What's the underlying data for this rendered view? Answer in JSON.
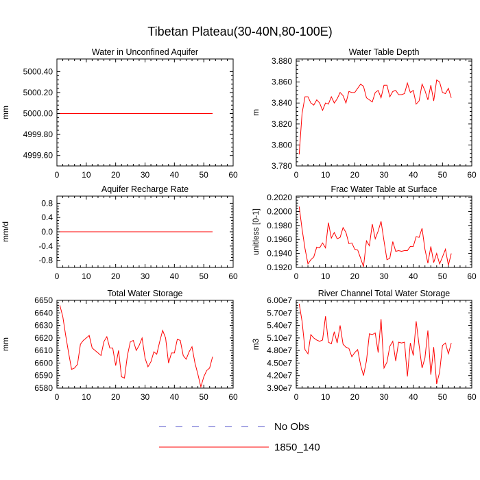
{
  "figure": {
    "title": "Tibetan Plateau(30-40N,80-100E)"
  },
  "legend": {
    "entries": [
      {
        "label": "No Obs",
        "color": "#5050c8",
        "dash": true
      },
      {
        "label": "1850_140",
        "color": "#ff0000",
        "dash": false
      }
    ]
  },
  "chart_data": [
    {
      "type": "line",
      "title": "Water in Unconfined Aquifer",
      "xlabel": "",
      "ylabel": "mm",
      "xlim": [
        0,
        60
      ],
      "ylim": [
        4999.5,
        5000.52
      ],
      "xticks": [
        0,
        10,
        20,
        30,
        40,
        50,
        60
      ],
      "yticks": [
        4999.6,
        4999.8,
        5000.0,
        5000.2,
        5000.4
      ],
      "ytick_labels": [
        "4999.60",
        "4999.80",
        "5000.00",
        "5000.20",
        "5000.40"
      ],
      "series": [
        {
          "name": "1850_140",
          "color": "#ff0000",
          "x": [
            1,
            53
          ],
          "y": [
            5000.0,
            5000.0
          ]
        }
      ]
    },
    {
      "type": "line",
      "title": "Water Table Depth",
      "xlabel": "",
      "ylabel": "m",
      "xlim": [
        0,
        60
      ],
      "ylim": [
        3.78,
        3.882
      ],
      "xticks": [
        0,
        10,
        20,
        30,
        40,
        50,
        60
      ],
      "yticks": [
        3.78,
        3.8,
        3.82,
        3.84,
        3.86,
        3.88
      ],
      "ytick_labels": [
        "3.780",
        "3.800",
        "3.820",
        "3.840",
        "3.860",
        "3.880"
      ],
      "series": [
        {
          "name": "1850_140",
          "color": "#ff0000",
          "x": [
            1,
            2,
            3,
            4,
            5,
            6,
            7,
            8,
            9,
            10,
            11,
            12,
            13,
            14,
            15,
            16,
            17,
            18,
            19,
            20,
            21,
            22,
            23,
            24,
            25,
            26,
            27,
            28,
            29,
            30,
            31,
            32,
            33,
            34,
            35,
            36,
            37,
            38,
            39,
            40,
            41,
            42,
            43,
            44,
            45,
            46,
            47,
            48,
            49,
            50,
            51,
            52,
            53
          ],
          "y": [
            3.791,
            3.83,
            3.846,
            3.846,
            3.84,
            3.838,
            3.843,
            3.84,
            3.833,
            3.84,
            3.839,
            3.846,
            3.84,
            3.844,
            3.85,
            3.847,
            3.84,
            3.851,
            3.85,
            3.85,
            3.854,
            3.858,
            3.856,
            3.845,
            3.843,
            3.841,
            3.85,
            3.852,
            3.845,
            3.857,
            3.857,
            3.846,
            3.851,
            3.852,
            3.848,
            3.848,
            3.849,
            3.859,
            3.85,
            3.852,
            3.839,
            3.842,
            3.858,
            3.852,
            3.843,
            3.857,
            3.842,
            3.862,
            3.86,
            3.85,
            3.849,
            3.854,
            3.845
          ]
        }
      ]
    },
    {
      "type": "line",
      "title": "Aquifer Recharge Rate",
      "xlabel": "",
      "ylabel": "mm/d",
      "xlim": [
        0,
        60
      ],
      "ylim": [
        -1.0,
        1.0
      ],
      "xticks": [
        0,
        10,
        20,
        30,
        40,
        50,
        60
      ],
      "yticks": [
        -0.8,
        -0.4,
        0.0,
        0.4,
        0.8
      ],
      "ytick_labels": [
        "-0.8",
        "-0.4",
        "0.0",
        "0.4",
        "0.8"
      ],
      "series": [
        {
          "name": "1850_140",
          "color": "#ff0000",
          "x": [
            1,
            53
          ],
          "y": [
            0.0,
            0.0
          ]
        }
      ]
    },
    {
      "type": "line",
      "title": "Frac Water Table at Surface",
      "xlabel": "",
      "ylabel": "unitless [0-1]",
      "xlim": [
        0,
        60
      ],
      "ylim": [
        0.192,
        0.2022
      ],
      "xticks": [
        0,
        10,
        20,
        30,
        40,
        50,
        60
      ],
      "yticks": [
        0.192,
        0.194,
        0.196,
        0.198,
        0.2,
        0.202
      ],
      "ytick_labels": [
        "0.1920",
        "0.1940",
        "0.1960",
        "0.1980",
        "0.2000",
        "0.2020"
      ],
      "series": [
        {
          "name": "1850_140",
          "color": "#ff0000",
          "x": [
            1,
            2,
            3,
            4,
            5,
            6,
            7,
            8,
            9,
            10,
            11,
            12,
            13,
            14,
            15,
            16,
            17,
            18,
            19,
            20,
            21,
            22,
            23,
            24,
            25,
            26,
            27,
            28,
            29,
            30,
            31,
            32,
            33,
            34,
            35,
            36,
            37,
            38,
            39,
            40,
            41,
            42,
            43,
            44,
            45,
            46,
            47,
            48,
            49,
            50,
            51,
            52,
            53
          ],
          "y": [
            0.2007,
            0.1975,
            0.1947,
            0.1925,
            0.1931,
            0.1935,
            0.1949,
            0.1948,
            0.1955,
            0.1948,
            0.1984,
            0.1962,
            0.197,
            0.1961,
            0.1963,
            0.1977,
            0.197,
            0.1954,
            0.1955,
            0.1946,
            0.1945,
            0.1933,
            0.1921,
            0.1958,
            0.1951,
            0.1982,
            0.1961,
            0.1972,
            0.1986,
            0.1958,
            0.1931,
            0.1933,
            0.1957,
            0.1943,
            0.1944,
            0.1943,
            0.1944,
            0.1944,
            0.195,
            0.195,
            0.1964,
            0.1963,
            0.1976,
            0.1946,
            0.1926,
            0.195,
            0.1927,
            0.194,
            0.1925,
            0.1935,
            0.1946,
            0.1923,
            0.194
          ]
        }
      ]
    },
    {
      "type": "line",
      "title": "Total Water Storage",
      "xlabel": "",
      "ylabel": "mm",
      "xlim": [
        0,
        60
      ],
      "ylim": [
        6580,
        6650
      ],
      "xticks": [
        0,
        10,
        20,
        30,
        40,
        50,
        60
      ],
      "yticks": [
        6580,
        6590,
        6600,
        6610,
        6620,
        6630,
        6640,
        6650
      ],
      "ytick_labels": [
        "6580",
        "6590",
        "6600",
        "6610",
        "6620",
        "6630",
        "6640",
        "6650"
      ],
      "series": [
        {
          "name": "1850_140",
          "color": "#ff0000",
          "x": [
            1,
            2,
            3,
            4,
            5,
            6,
            7,
            8,
            9,
            10,
            11,
            12,
            13,
            14,
            15,
            16,
            17,
            18,
            19,
            20,
            21,
            22,
            23,
            24,
            25,
            26,
            27,
            28,
            29,
            30,
            31,
            32,
            33,
            34,
            35,
            36,
            37,
            38,
            39,
            40,
            41,
            42,
            43,
            44,
            45,
            46,
            47,
            48,
            49,
            50,
            51,
            52,
            53
          ],
          "y": [
            6646,
            6637,
            6622,
            6608,
            6595,
            6596,
            6599,
            6615,
            6618,
            6620,
            6622,
            6612,
            6610,
            6608,
            6606,
            6617,
            6621,
            6612,
            6612,
            6598,
            6610,
            6589,
            6588,
            6606,
            6617,
            6618,
            6610,
            6614,
            6620,
            6604,
            6597,
            6601,
            6609,
            6607,
            6617,
            6626,
            6620,
            6600,
            6608,
            6608,
            6619,
            6618,
            6606,
            6603,
            6609,
            6613,
            6600,
            6591,
            6581,
            6589,
            6594,
            6596,
            6605
          ]
        }
      ]
    },
    {
      "type": "line",
      "title": "River Channel Total Water Storage",
      "xlabel": "",
      "ylabel": "m3",
      "xlim": [
        0,
        60
      ],
      "ylim": [
        39000000.0,
        60000000.0
      ],
      "xticks": [
        0,
        10,
        20,
        30,
        40,
        50,
        60
      ],
      "yticks": [
        39000000.0,
        42000000.0,
        45000000.0,
        48000000.0,
        51000000.0,
        54000000.0,
        57000000.0,
        60000000.0
      ],
      "ytick_labels": [
        "3.90e7",
        "4.20e7",
        "4.50e7",
        "4.80e7",
        "5.10e7",
        "5.40e7",
        "5.70e7",
        "6.00e7"
      ],
      "series": [
        {
          "name": "1850_140",
          "color": "#ff0000",
          "x": [
            1,
            2,
            3,
            4,
            5,
            6,
            7,
            8,
            9,
            10,
            11,
            12,
            13,
            14,
            15,
            16,
            17,
            18,
            19,
            20,
            21,
            22,
            23,
            24,
            25,
            26,
            27,
            28,
            29,
            30,
            31,
            32,
            33,
            34,
            35,
            36,
            37,
            38,
            39,
            40,
            41,
            42,
            43,
            44,
            45,
            46,
            47,
            48,
            49,
            50,
            51,
            52,
            53
          ],
          "y": [
            59200000.0,
            55000000.0,
            48200000.0,
            47200000.0,
            51800000.0,
            51000000.0,
            50500000.0,
            50200000.0,
            50500000.0,
            56200000.0,
            50000000.0,
            49600000.0,
            52500000.0,
            49800000.0,
            54000000.0,
            49500000.0,
            48800000.0,
            48500000.0,
            46500000.0,
            47500000.0,
            48200000.0,
            44500000.0,
            42000000.0,
            45500000.0,
            52000000.0,
            51800000.0,
            52200000.0,
            47500000.0,
            55500000.0,
            43800000.0,
            45200000.0,
            49000000.0,
            50200000.0,
            45500000.0,
            50000000.0,
            49800000.0,
            50000000.0,
            41800000.0,
            49800000.0,
            46800000.0,
            55000000.0,
            49200000.0,
            43800000.0,
            46200000.0,
            52800000.0,
            42200000.0,
            48800000.0,
            40000000.0,
            42800000.0,
            49200000.0,
            49800000.0,
            47200000.0,
            49800000.0
          ]
        }
      ]
    }
  ]
}
